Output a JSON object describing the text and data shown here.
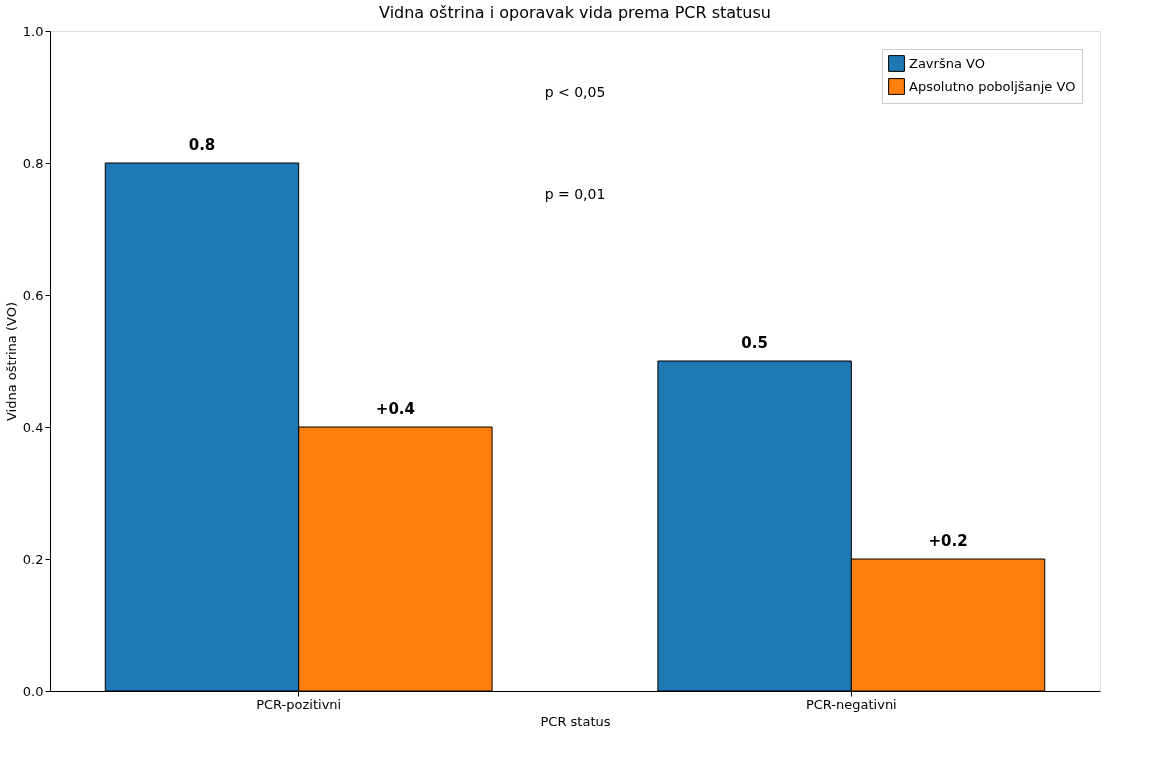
{
  "chart_data": {
    "type": "bar",
    "title": "Vidna oštrina i oporavak vida prema PCR statusu",
    "xlabel": "PCR status",
    "ylabel": "Vidna oštrina (VO)",
    "categories": [
      "PCR-pozitivni",
      "PCR-negativni"
    ],
    "series": [
      {
        "name": "Završna VO",
        "color": "#1f77b4",
        "values": [
          0.8,
          0.5
        ],
        "value_labels": [
          "0.8",
          "0.5"
        ]
      },
      {
        "name": "Apsolutno poboljšanje VO",
        "color": "#ff7f0e",
        "values": [
          0.4,
          0.2
        ],
        "value_labels": [
          "+0.4",
          "+0.2"
        ]
      }
    ],
    "ylim": [
      0,
      1.0
    ],
    "yticks": [
      {
        "value": 0,
        "label": "0.0"
      },
      {
        "value": 0.2,
        "label": "0.2"
      },
      {
        "value": 0.4,
        "label": "0.4"
      },
      {
        "value": 0.6,
        "label": "0.6"
      },
      {
        "value": 0.8,
        "label": "0.8"
      },
      {
        "value": 1.0,
        "label": "1.0"
      }
    ],
    "annotations": [
      "p < 0,05",
      "p = 0,01"
    ],
    "legend": "top right",
    "grid": false
  }
}
